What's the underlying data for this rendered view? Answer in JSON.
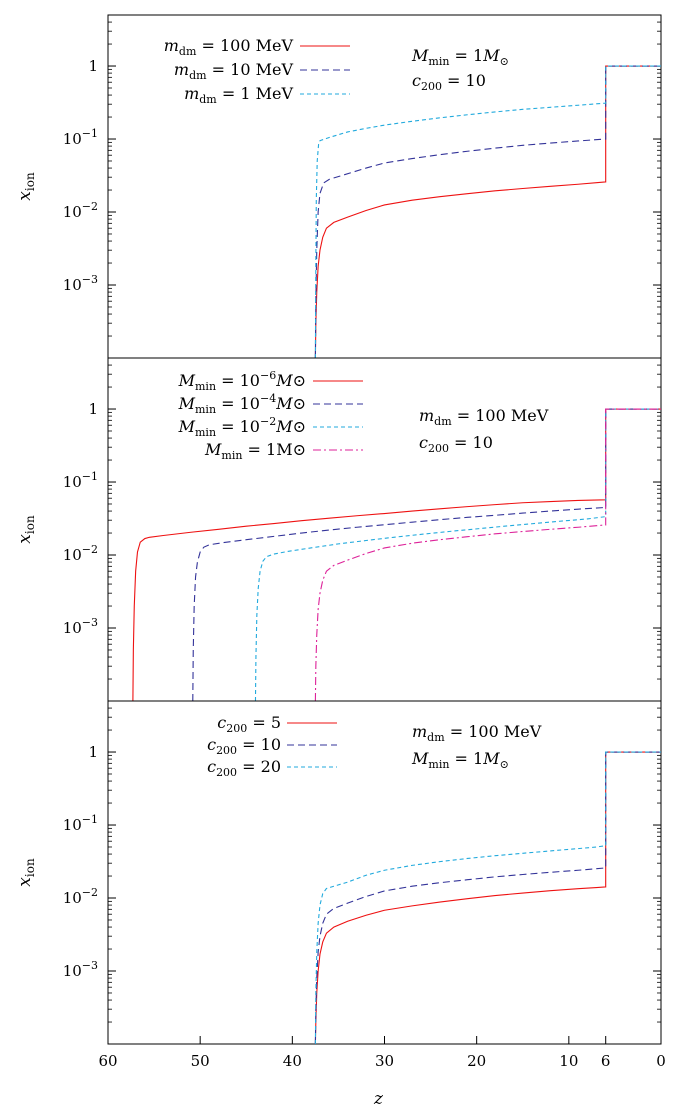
{
  "chart_data": [
    {
      "type": "line",
      "panel": "top",
      "ylabel": "x_ion",
      "yscale": "log",
      "ylim": [
        0.0001,
        5
      ],
      "xlim": [
        60,
        0
      ],
      "yticks": [
        {
          "value": 0.001,
          "mant": "10",
          "exp": "−3"
        },
        {
          "value": 0.01,
          "mant": "10",
          "exp": "−2"
        },
        {
          "value": 0.1,
          "mant": "10",
          "exp": "−1"
        },
        {
          "value": 1,
          "mant": "1",
          "exp": ""
        }
      ],
      "annotation": [
        "M_min = 1M_⊙",
        "c_200 = 10"
      ],
      "series": [
        {
          "name": "m_dm = 100 MeV",
          "legend": {
            "sym": "m",
            "sub": "dm",
            "rhs": "= 100 MeV"
          },
          "color": "#ee1111",
          "dash": "",
          "x": [
            37.5,
            37.45,
            37.35,
            37.2,
            37.0,
            36.7,
            36.3,
            35.5,
            34,
            32,
            30,
            27,
            24,
            21,
            18,
            15,
            12,
            9,
            7,
            6.05,
            6,
            6,
            0
          ],
          "y": [
            0.0001,
            0.0003,
            0.0008,
            0.0018,
            0.003,
            0.0045,
            0.006,
            0.0072,
            0.0085,
            0.0105,
            0.0125,
            0.0145,
            0.0162,
            0.0178,
            0.0195,
            0.021,
            0.0225,
            0.024,
            0.0252,
            0.0258,
            0.0258,
            1.0,
            1.0
          ]
        },
        {
          "name": "m_dm = 10 MeV",
          "legend": {
            "sym": "m",
            "sub": "dm",
            "rhs": "= 10 MeV"
          },
          "color": "#333399",
          "dash": "7,4",
          "x": [
            37.5,
            37.45,
            37.35,
            37.2,
            37.0,
            36.6,
            36.0,
            34.5,
            32,
            30,
            27,
            24,
            21,
            18,
            15,
            12,
            9,
            6.05,
            6,
            6,
            0
          ],
          "y": [
            0.0001,
            0.0006,
            0.003,
            0.01,
            0.018,
            0.025,
            0.028,
            0.032,
            0.04,
            0.047,
            0.054,
            0.061,
            0.068,
            0.075,
            0.082,
            0.088,
            0.094,
            0.1,
            0.1,
            1.0,
            1.0
          ]
        },
        {
          "name": "m_dm = 1 MeV",
          "legend": {
            "sym": "m",
            "sub": "dm",
            "rhs": "= 1 MeV"
          },
          "color": "#22aadd",
          "dash": "4,3",
          "x": [
            37.5,
            37.45,
            37.4,
            37.3,
            37.15,
            37.0,
            36,
            34,
            32,
            30,
            27,
            24,
            21,
            18,
            15,
            12,
            9,
            6.05,
            6,
            6,
            0
          ],
          "y": [
            0.0001,
            0.002,
            0.015,
            0.05,
            0.085,
            0.095,
            0.105,
            0.125,
            0.14,
            0.155,
            0.175,
            0.195,
            0.215,
            0.235,
            0.255,
            0.272,
            0.29,
            0.31,
            0.31,
            1.0,
            1.0
          ]
        }
      ]
    },
    {
      "type": "line",
      "panel": "middle",
      "ylabel": "x_ion",
      "yscale": "log",
      "ylim": [
        0.0001,
        5
      ],
      "xlim": [
        60,
        0
      ],
      "yticks": [
        {
          "value": 0.001,
          "mant": "10",
          "exp": "−3"
        },
        {
          "value": 0.01,
          "mant": "10",
          "exp": "−2"
        },
        {
          "value": 0.1,
          "mant": "10",
          "exp": "−1"
        },
        {
          "value": 1,
          "mant": "1",
          "exp": ""
        }
      ],
      "annotation": [
        "m_dm = 100 MeV",
        "c_200 = 10"
      ],
      "series": [
        {
          "name": "M_min = 10^-6 M_⊙",
          "legend": {
            "sym": "M",
            "sub": "min",
            "rhs": "= 10",
            "exp": "−6",
            "tail": "M⊙"
          },
          "color": "#ee1111",
          "dash": "",
          "x": [
            57.3,
            57.25,
            57.15,
            57.0,
            56.8,
            56.5,
            56.0,
            55.5,
            54,
            51,
            48,
            45,
            42,
            39,
            36,
            33,
            30,
            27,
            24,
            21,
            18,
            15,
            12,
            9,
            6.05,
            6,
            6,
            0
          ],
          "y": [
            0.0001,
            0.0005,
            0.002,
            0.006,
            0.011,
            0.015,
            0.0168,
            0.0175,
            0.0185,
            0.0205,
            0.0225,
            0.0248,
            0.027,
            0.0295,
            0.032,
            0.0345,
            0.037,
            0.04,
            0.043,
            0.046,
            0.049,
            0.052,
            0.054,
            0.056,
            0.057,
            0.057,
            1.0,
            1.0
          ]
        },
        {
          "name": "M_min = 10^-4 M_⊙",
          "legend": {
            "sym": "M",
            "sub": "min",
            "rhs": "= 10",
            "exp": "−4",
            "tail": "M⊙"
          },
          "color": "#333399",
          "dash": "7,4",
          "x": [
            50.8,
            50.75,
            50.65,
            50.5,
            50.3,
            50.0,
            49.6,
            49.0,
            47.5,
            45,
            42,
            39,
            36,
            33,
            30,
            27,
            24,
            21,
            18,
            15,
            12,
            9,
            6.05,
            6,
            6,
            0
          ],
          "y": [
            0.0001,
            0.0005,
            0.002,
            0.005,
            0.008,
            0.011,
            0.0128,
            0.0138,
            0.0148,
            0.0162,
            0.018,
            0.02,
            0.022,
            0.024,
            0.026,
            0.0282,
            0.0305,
            0.0328,
            0.035,
            0.0375,
            0.04,
            0.0425,
            0.0448,
            0.0448,
            1.0,
            1.0
          ]
        },
        {
          "name": "M_min = 10^-2 M_⊙",
          "legend": {
            "sym": "M",
            "sub": "min",
            "rhs": "= 10",
            "exp": "−2",
            "tail": "M⊙"
          },
          "color": "#22aadd",
          "dash": "4,3",
          "x": [
            44.0,
            43.95,
            43.85,
            43.7,
            43.5,
            43.2,
            42.8,
            42.0,
            40.5,
            38,
            35,
            32,
            29,
            26,
            23,
            20,
            17,
            14,
            11,
            8,
            6.05,
            6,
            6,
            0
          ],
          "y": [
            0.0001,
            0.0004,
            0.0015,
            0.0035,
            0.006,
            0.0082,
            0.0095,
            0.0103,
            0.0112,
            0.0125,
            0.0142,
            0.0158,
            0.0175,
            0.0192,
            0.021,
            0.0228,
            0.0248,
            0.0268,
            0.029,
            0.0312,
            0.0335,
            0.0335,
            1.0,
            1.0
          ]
        },
        {
          "name": "M_min = 1M_⊙",
          "legend": {
            "sym": "M",
            "sub": "min",
            "rhs": "= 1M⊙",
            "exp": "",
            "tail": ""
          },
          "color": "#dd2299",
          "dash": "8,3,2,3",
          "x": [
            37.5,
            37.45,
            37.35,
            37.2,
            37.0,
            36.7,
            36.3,
            35.5,
            34,
            32,
            30,
            27,
            24,
            21,
            18,
            15,
            12,
            9,
            7,
            6.05,
            6,
            6,
            0
          ],
          "y": [
            0.0001,
            0.0003,
            0.0008,
            0.0018,
            0.003,
            0.0045,
            0.006,
            0.0072,
            0.0085,
            0.0105,
            0.0125,
            0.0145,
            0.0162,
            0.0178,
            0.0195,
            0.021,
            0.0225,
            0.024,
            0.0252,
            0.0258,
            0.0258,
            1.0,
            1.0
          ]
        }
      ]
    },
    {
      "type": "line",
      "panel": "bottom",
      "ylabel": "x_ion",
      "xlabel": "z",
      "yscale": "log",
      "ylim": [
        0.0001,
        5
      ],
      "xlim": [
        60,
        0
      ],
      "yticks": [
        {
          "value": 0.001,
          "mant": "10",
          "exp": "−3"
        },
        {
          "value": 0.01,
          "mant": "10",
          "exp": "−2"
        },
        {
          "value": 0.1,
          "mant": "10",
          "exp": "−1"
        },
        {
          "value": 1,
          "mant": "1",
          "exp": ""
        }
      ],
      "xticks": [
        {
          "value": 60,
          "label": "60"
        },
        {
          "value": 50,
          "label": "50"
        },
        {
          "value": 40,
          "label": "40"
        },
        {
          "value": 30,
          "label": "30"
        },
        {
          "value": 20,
          "label": "20"
        },
        {
          "value": 10,
          "label": "10"
        },
        {
          "value": 6,
          "label": "6"
        },
        {
          "value": 0,
          "label": "0"
        }
      ],
      "annotation": [
        "m_dm = 100 MeV",
        "M_min = 1M_⊙"
      ],
      "series": [
        {
          "name": "c_200 = 5",
          "legend": {
            "sym": "c",
            "sub": "200",
            "rhs": "= 5"
          },
          "color": "#ee1111",
          "dash": "",
          "x": [
            37.5,
            37.45,
            37.35,
            37.2,
            37.0,
            36.7,
            36.3,
            35.5,
            34,
            32,
            30,
            27,
            24,
            21,
            18,
            15,
            12,
            9,
            7,
            6.05,
            6,
            6,
            0
          ],
          "y": [
            0.0001,
            0.0002,
            0.0005,
            0.001,
            0.0017,
            0.0025,
            0.0033,
            0.004,
            0.0048,
            0.0058,
            0.0068,
            0.0078,
            0.0088,
            0.0098,
            0.0108,
            0.0117,
            0.0126,
            0.0134,
            0.0139,
            0.0142,
            0.0142,
            1.0,
            1.0
          ]
        },
        {
          "name": "c_200 = 10",
          "legend": {
            "sym": "c",
            "sub": "200",
            "rhs": "= 10"
          },
          "color": "#333399",
          "dash": "7,4",
          "x": [
            37.5,
            37.45,
            37.35,
            37.2,
            37.0,
            36.7,
            36.3,
            35.5,
            34,
            32,
            30,
            27,
            24,
            21,
            18,
            15,
            12,
            9,
            7,
            6.05,
            6,
            6,
            0
          ],
          "y": [
            0.0001,
            0.0003,
            0.0008,
            0.0018,
            0.003,
            0.0045,
            0.006,
            0.0072,
            0.0085,
            0.0105,
            0.0125,
            0.0145,
            0.0162,
            0.0178,
            0.0195,
            0.021,
            0.0225,
            0.024,
            0.0252,
            0.0258,
            0.0258,
            1.0,
            1.0
          ]
        },
        {
          "name": "c_200 = 20",
          "legend": {
            "sym": "c",
            "sub": "200",
            "rhs": "= 20"
          },
          "color": "#22aadd",
          "dash": "4,3",
          "x": [
            37.5,
            37.45,
            37.35,
            37.2,
            37.0,
            36.7,
            36.3,
            35.5,
            34,
            32,
            30,
            27,
            24,
            21,
            18,
            15,
            12,
            9,
            7,
            6.05,
            6,
            6,
            0
          ],
          "y": [
            0.0001,
            0.0005,
            0.0018,
            0.0045,
            0.008,
            0.0115,
            0.0135,
            0.0145,
            0.0165,
            0.0205,
            0.024,
            0.028,
            0.0315,
            0.0348,
            0.038,
            0.041,
            0.0442,
            0.0475,
            0.05,
            0.052,
            0.052,
            1.0,
            1.0
          ]
        }
      ]
    }
  ]
}
